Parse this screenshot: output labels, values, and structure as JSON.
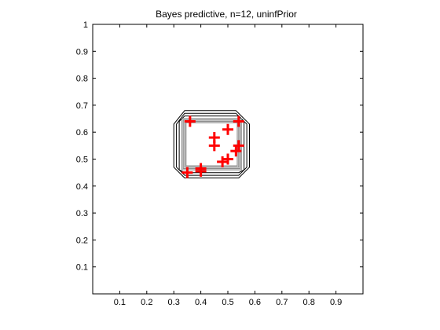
{
  "chart_data": {
    "type": "scatter",
    "title": "Bayes predictive, n=12, uninfPrior",
    "xlabel": "",
    "ylabel": "",
    "xlim": [
      0,
      1
    ],
    "ylim": [
      0,
      1
    ],
    "x_ticks": [
      0.1,
      0.2,
      0.3,
      0.4,
      0.5,
      0.6,
      0.7,
      0.8,
      0.9
    ],
    "y_ticks": [
      0.1,
      0.2,
      0.3,
      0.4,
      0.5,
      0.6,
      0.7,
      0.8,
      0.9,
      1
    ],
    "grid": false,
    "marker": "plus",
    "marker_color": "#ff0000",
    "contour_color": "#000000",
    "points": [
      {
        "x": 0.36,
        "y": 0.64
      },
      {
        "x": 0.54,
        "y": 0.64
      },
      {
        "x": 0.5,
        "y": 0.61
      },
      {
        "x": 0.45,
        "y": 0.58
      },
      {
        "x": 0.45,
        "y": 0.55
      },
      {
        "x": 0.54,
        "y": 0.55
      },
      {
        "x": 0.53,
        "y": 0.53
      },
      {
        "x": 0.5,
        "y": 0.5
      },
      {
        "x": 0.48,
        "y": 0.49
      },
      {
        "x": 0.4,
        "y": 0.465
      },
      {
        "x": 0.4,
        "y": 0.455
      },
      {
        "x": 0.35,
        "y": 0.45
      }
    ],
    "contours": [
      [
        [
          0.34,
          0.68
        ],
        [
          0.53,
          0.68
        ],
        [
          0.58,
          0.63
        ],
        [
          0.58,
          0.47
        ],
        [
          0.54,
          0.43
        ],
        [
          0.34,
          0.43
        ],
        [
          0.3,
          0.47
        ],
        [
          0.3,
          0.63
        ]
      ],
      [
        [
          0.34,
          0.67
        ],
        [
          0.53,
          0.67
        ],
        [
          0.57,
          0.63
        ],
        [
          0.57,
          0.47
        ],
        [
          0.54,
          0.44
        ],
        [
          0.34,
          0.44
        ],
        [
          0.31,
          0.47
        ],
        [
          0.31,
          0.63
        ]
      ],
      [
        [
          0.34,
          0.66
        ],
        [
          0.54,
          0.66
        ],
        [
          0.56,
          0.64
        ],
        [
          0.56,
          0.46
        ],
        [
          0.54,
          0.45
        ],
        [
          0.34,
          0.45
        ],
        [
          0.32,
          0.46
        ],
        [
          0.32,
          0.64
        ]
      ],
      [
        [
          0.33,
          0.65
        ],
        [
          0.55,
          0.65
        ],
        [
          0.55,
          0.46
        ],
        [
          0.33,
          0.46
        ]
      ],
      [
        [
          0.335,
          0.645
        ],
        [
          0.545,
          0.645
        ],
        [
          0.545,
          0.465
        ],
        [
          0.335,
          0.465
        ]
      ],
      [
        [
          0.34,
          0.64
        ],
        [
          0.54,
          0.64
        ],
        [
          0.54,
          0.47
        ],
        [
          0.34,
          0.47
        ]
      ],
      [
        [
          0.345,
          0.635
        ],
        [
          0.535,
          0.635
        ],
        [
          0.535,
          0.475
        ],
        [
          0.345,
          0.475
        ]
      ]
    ]
  }
}
